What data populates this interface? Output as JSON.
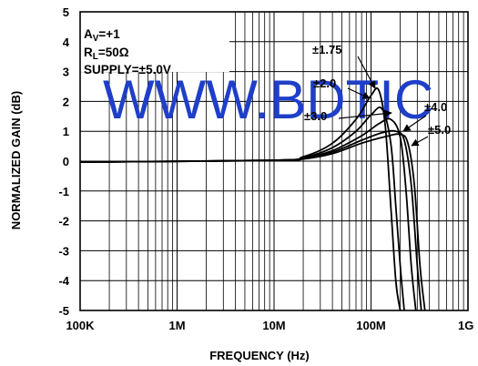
{
  "chart_data": {
    "type": "line",
    "xlabel": "FREQUENCY (Hz)",
    "ylabel": "NORMALIZED GAIN (dB)",
    "xscale": "log",
    "xlim": [
      100000,
      1000000000
    ],
    "ylim": [
      -5,
      5
    ],
    "grid": true,
    "x_ticks": [
      {
        "value": 100000,
        "label": "100K"
      },
      {
        "value": 1000000,
        "label": "1M"
      },
      {
        "value": 10000000,
        "label": "10M"
      },
      {
        "value": 100000000,
        "label": "100M"
      },
      {
        "value": 1000000000,
        "label": "1G"
      }
    ],
    "y_ticks": [
      5,
      4,
      3,
      2,
      1,
      0,
      -1,
      -2,
      -3,
      -4,
      -5
    ],
    "conditions": [
      "AV=+1",
      "RL=50Ω",
      "SUPPLY=±5.0V"
    ],
    "series": [
      {
        "name": "±1.75",
        "x": [
          100000,
          10000000,
          20000000,
          40000000,
          70000000,
          100000000,
          120000000,
          140000000,
          160000000,
          180000000,
          200000000
        ],
        "y": [
          -0.03,
          0.03,
          0.15,
          0.6,
          1.4,
          2.2,
          2.38,
          1.2,
          -1.5,
          -4.0,
          -5.0
        ]
      },
      {
        "name": "±2.0",
        "x": [
          100000,
          10000000,
          20000000,
          40000000,
          70000000,
          100000000,
          130000000,
          160000000,
          180000000,
          200000000,
          220000000
        ],
        "y": [
          -0.03,
          0.03,
          0.12,
          0.45,
          1.0,
          1.55,
          1.75,
          0.6,
          -1.5,
          -3.5,
          -5.0
        ]
      },
      {
        "name": "±3.0",
        "x": [
          100000,
          10000000,
          20000000,
          40000000,
          80000000,
          120000000,
          160000000,
          200000000,
          230000000,
          260000000,
          290000000
        ],
        "y": [
          -0.03,
          0.03,
          0.1,
          0.35,
          0.85,
          1.25,
          1.4,
          0.8,
          -1.0,
          -3.5,
          -5.0
        ]
      },
      {
        "name": "±4.0",
        "x": [
          100000,
          10000000,
          20000000,
          40000000,
          80000000,
          130000000,
          180000000,
          220000000,
          260000000,
          300000000,
          330000000
        ],
        "y": [
          -0.03,
          0.02,
          0.08,
          0.3,
          0.7,
          0.95,
          1.0,
          0.7,
          -0.8,
          -3.5,
          -5.0
        ]
      },
      {
        "name": "±5.0",
        "x": [
          100000,
          10000000,
          20000000,
          40000000,
          80000000,
          140000000,
          200000000,
          240000000,
          280000000,
          320000000,
          360000000
        ],
        "y": [
          -0.03,
          0.02,
          0.07,
          0.25,
          0.6,
          0.82,
          0.9,
          0.6,
          -0.8,
          -3.5,
          -5.0
        ]
      }
    ],
    "annotations": [
      "±1.75",
      "±2.0",
      "±3.0",
      "±4.0",
      "±5.0"
    ],
    "watermark": "WWW.BDTIC"
  }
}
